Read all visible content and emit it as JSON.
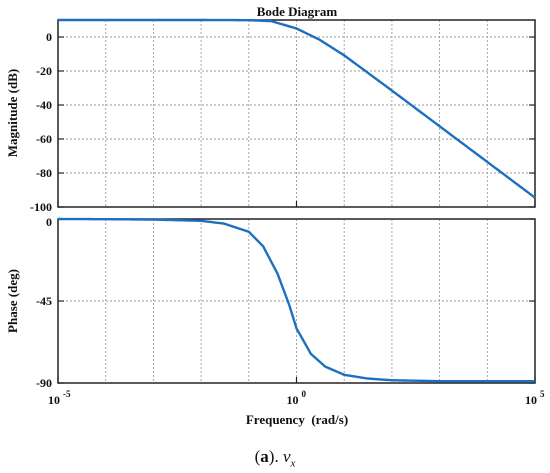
{
  "chart_data": [
    {
      "type": "line",
      "title": "Bode Diagram",
      "ylabel": "Magnitude (dB)",
      "xscale": "log",
      "xlim": [
        1e-05,
        100000
      ],
      "ylim": [
        -100,
        10
      ],
      "yticks": [
        0,
        -20,
        -40,
        -60,
        -80,
        -100
      ],
      "grid": true,
      "series": [
        {
          "color": "#1f6fbf",
          "x": [
            1e-05,
            0.0001,
            0.001,
            0.01,
            0.1,
            0.3,
            1,
            3,
            10,
            100,
            1000,
            10000,
            100000
          ],
          "y": [
            10,
            10,
            10,
            10,
            9.9,
            9.3,
            5,
            -1.5,
            -10.8,
            -31.5,
            -52.5,
            -73.5,
            -94.5
          ]
        }
      ]
    },
    {
      "type": "line",
      "xlabel": "Frequency  (rad/s)",
      "ylabel": "Phase (deg)",
      "xscale": "log",
      "xlim": [
        1e-05,
        100000
      ],
      "ylim": [
        -90,
        0
      ],
      "yticks": [
        0,
        -45,
        -90
      ],
      "grid": true,
      "series": [
        {
          "color": "#1f6fbf",
          "x": [
            1e-05,
            0.0001,
            0.001,
            0.01,
            0.03,
            0.1,
            0.2,
            0.4,
            0.7,
            1,
            2,
            4,
            10,
            30,
            100,
            1000,
            10000,
            100000
          ],
          "y": [
            0,
            -0.1,
            -0.3,
            -1,
            -2.5,
            -7,
            -15,
            -30,
            -47,
            -60,
            -74,
            -81,
            -85.5,
            -87.5,
            -88.5,
            -89,
            -89,
            -89
          ]
        }
      ]
    }
  ],
  "xticks": [
    {
      "base": "10",
      "exp": "-5",
      "value": 1e-05
    },
    {
      "base": "10",
      "exp": "0",
      "value": 1
    },
    {
      "base": "10",
      "exp": "5",
      "value": 100000
    }
  ],
  "caption": {
    "open": "(",
    "letter": "a",
    "close": ").",
    "variable": "v",
    "subscript": "x"
  }
}
